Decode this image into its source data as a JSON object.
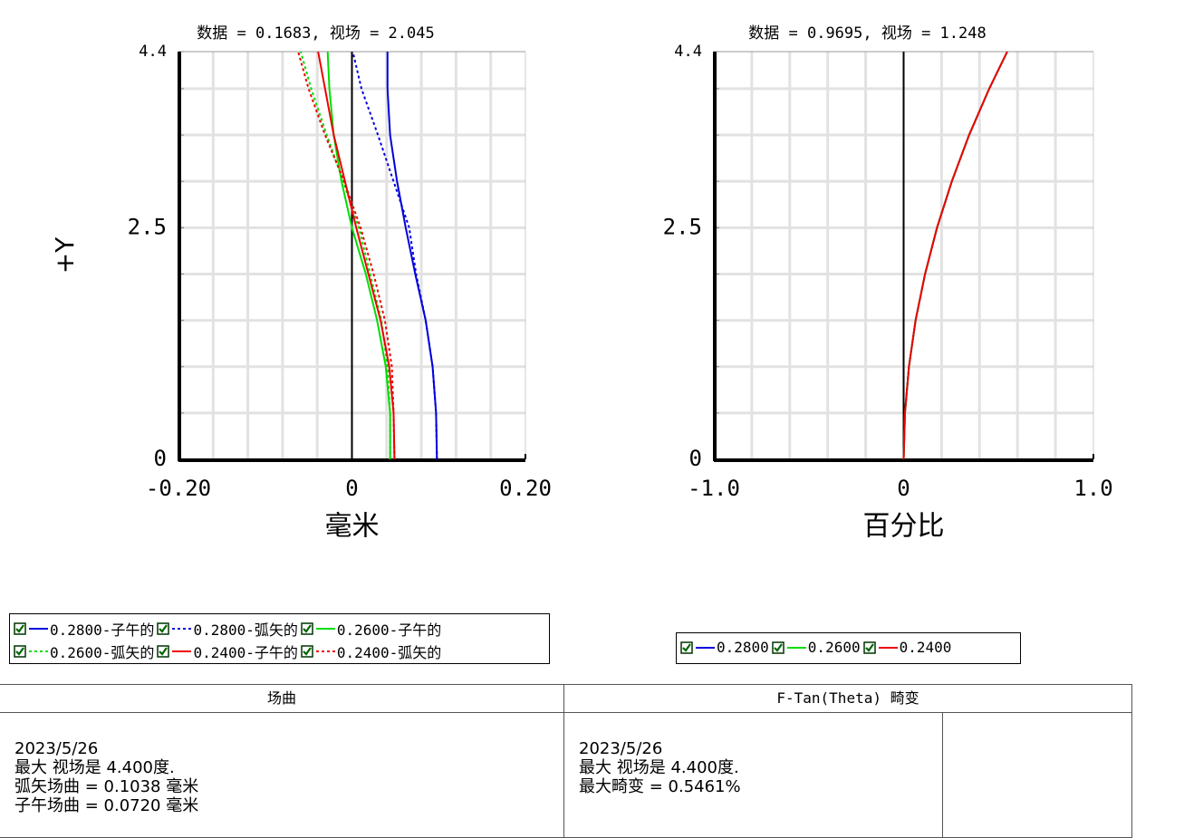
{
  "chart_data": [
    {
      "type": "line",
      "title": "数据 = 0.1683, 视场 = 2.045",
      "xlabel": "毫米",
      "ylabel": "+Y",
      "xlim": [
        -0.2,
        0.2
      ],
      "ylim": [
        0,
        4.4
      ],
      "xticks": [
        {
          "value": -0.2,
          "label": "-0.20"
        },
        0,
        {
          "value": 0.2,
          "label": "0.20"
        }
      ],
      "yticks": [
        0,
        2.5,
        4.4
      ],
      "xgrid": [
        -0.16,
        -0.12,
        -0.08,
        -0.04,
        0.04,
        0.08,
        0.12,
        0.16
      ],
      "ygrid": [
        0.5,
        1,
        1.5,
        2,
        2.5,
        3,
        3.5,
        4
      ],
      "y": [
        0,
        0.5,
        1,
        1.5,
        2,
        2.5,
        3,
        3.5,
        4,
        4.4
      ],
      "series": [
        {
          "name": "0.2800-子午的",
          "color": "#0000dd",
          "style": "solid",
          "values": [
            0.098,
            0.097,
            0.093,
            0.085,
            0.073,
            0.062,
            0.052,
            0.044,
            0.041,
            0.041
          ]
        },
        {
          "name": "0.2800-弧矢的",
          "color": "#0000dd",
          "style": "dotted",
          "values": [
            0.098,
            0.097,
            0.093,
            0.085,
            0.074,
            0.066,
            0.048,
            0.03,
            0.011,
            0.001
          ]
        },
        {
          "name": "0.2600-子午的",
          "color": "#00dd00",
          "style": "solid",
          "values": [
            0.044,
            0.044,
            0.039,
            0.029,
            0.016,
            0.0,
            -0.012,
            -0.021,
            -0.026,
            -0.028
          ]
        },
        {
          "name": "0.2600-弧矢的",
          "color": "#00dd00",
          "style": "dotted",
          "values": [
            0.044,
            0.044,
            0.041,
            0.034,
            0.021,
            0.008,
            -0.01,
            -0.029,
            -0.047,
            -0.059
          ]
        },
        {
          "name": "0.2400-子午的",
          "color": "#ee0000",
          "style": "solid",
          "values": [
            0.049,
            0.048,
            0.043,
            0.033,
            0.019,
            0.005,
            -0.008,
            -0.021,
            -0.031,
            -0.039
          ]
        },
        {
          "name": "0.2400-弧矢的",
          "color": "#ee0000",
          "style": "dotted",
          "values": [
            0.049,
            0.048,
            0.046,
            0.038,
            0.025,
            0.01,
            -0.009,
            -0.031,
            -0.05,
            -0.062
          ]
        }
      ]
    },
    {
      "type": "line",
      "title": "数据 = 0.9695, 视场 = 1.248",
      "xlabel": "百分比",
      "xlim": [
        -1,
        1
      ],
      "ylim": [
        0,
        4.4
      ],
      "xticks": [
        {
          "value": -1,
          "label": "-1.0"
        },
        0,
        {
          "value": 1,
          "label": "1.0"
        }
      ],
      "yticks": [
        0,
        2.5,
        4.4
      ],
      "xgrid": [
        -0.8,
        -0.6,
        -0.4,
        -0.2,
        0.2,
        0.4,
        0.6,
        0.8
      ],
      "ygrid": [
        0.5,
        1,
        1.5,
        2,
        2.5,
        3,
        3.5,
        4
      ],
      "y": [
        0,
        0.5,
        1,
        1.5,
        2,
        2.5,
        3,
        3.5,
        4,
        4.4
      ],
      "series": [
        {
          "name": "0.2800",
          "color": "#0000dd",
          "style": "solid",
          "values": [
            0,
            0.007,
            0.028,
            0.063,
            0.113,
            0.176,
            0.254,
            0.345,
            0.451,
            0.546
          ]
        },
        {
          "name": "0.2600",
          "color": "#00dd00",
          "style": "solid",
          "values": [
            0,
            0.007,
            0.028,
            0.063,
            0.113,
            0.176,
            0.254,
            0.345,
            0.451,
            0.546
          ]
        },
        {
          "name": "0.2400",
          "color": "#ee0000",
          "style": "solid",
          "values": [
            0,
            0.007,
            0.028,
            0.063,
            0.113,
            0.176,
            0.254,
            0.345,
            0.451,
            0.546
          ]
        }
      ]
    }
  ],
  "table": {
    "headers": [
      "场曲",
      "F-Tan(Theta) 畸变"
    ],
    "cells": [
      [
        "2023/5/26",
        "最大 视场是 4.400度.",
        "弧矢场曲 = 0.1038 毫米",
        "子午场曲 = 0.0720 毫米"
      ],
      [
        "2023/5/26",
        "最大 视场是 4.400度.",
        "最大畸变 = 0.5461%"
      ]
    ]
  }
}
